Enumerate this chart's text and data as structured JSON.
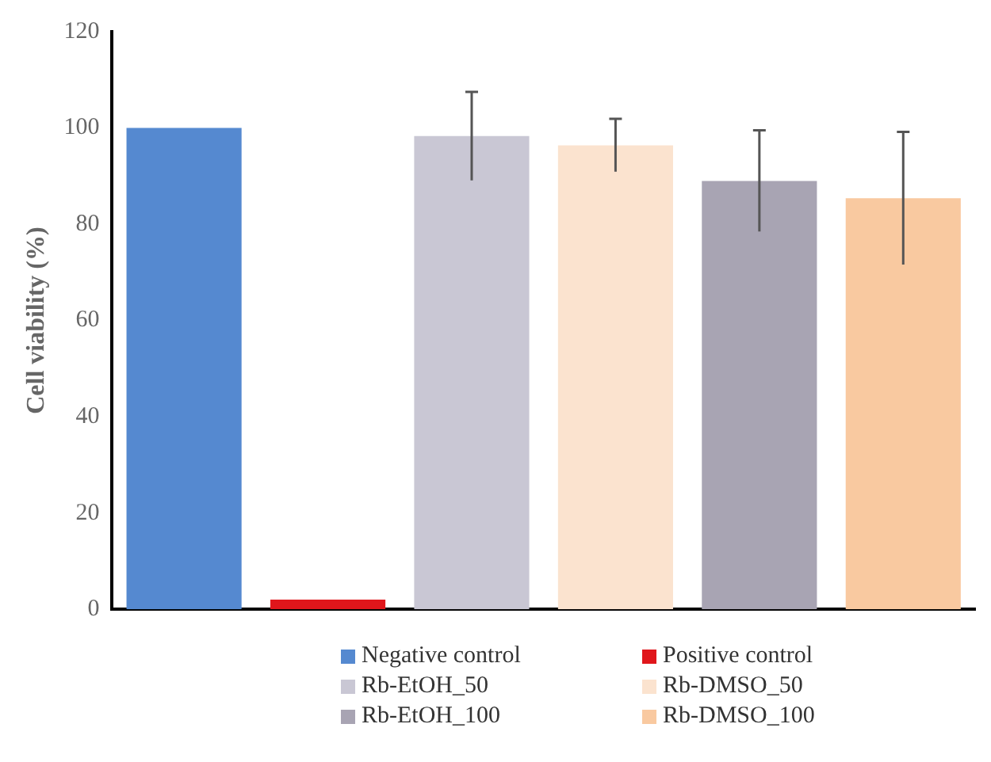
{
  "chart_data": {
    "type": "bar",
    "ylabel": "Cell viability (%)",
    "categories": [
      null,
      null,
      null,
      null,
      null,
      null
    ],
    "series": [
      {
        "name": "Negative control",
        "color": "#5589d0",
        "values": [
          100,
          null,
          null,
          null,
          null,
          null
        ]
      },
      {
        "name": "Positive control",
        "color": "#e0161b",
        "values": [
          null,
          2,
          null,
          null,
          null,
          null
        ]
      },
      {
        "name": "Rb-EtOH_50",
        "color": "#c9c7d4",
        "values": [
          null,
          null,
          98.3,
          null,
          null,
          null
        ],
        "errors": [
          null,
          null,
          9.2,
          null,
          null,
          null
        ]
      },
      {
        "name": "Rb-DMSO_50",
        "color": "#fbe3cf",
        "values": [
          null,
          null,
          null,
          96.4,
          null,
          null
        ],
        "errors": [
          null,
          null,
          null,
          5.5,
          null,
          null
        ]
      },
      {
        "name": "Rb-EtOH_100",
        "color": "#a8a4b3",
        "values": [
          null,
          null,
          null,
          null,
          89,
          null
        ],
        "errors": [
          null,
          null,
          null,
          null,
          10.5,
          null
        ]
      },
      {
        "name": "Rb-DMSO_100",
        "color": "#f9c9a0",
        "values": [
          null,
          null,
          null,
          null,
          null,
          85.4
        ],
        "errors": [
          null,
          null,
          null,
          null,
          null,
          13.8
        ]
      }
    ],
    "ylim": [
      0,
      120
    ],
    "yticks": [
      0,
      20,
      40,
      60,
      80,
      100,
      120
    ],
    "grid": false,
    "legend": "bottom"
  }
}
